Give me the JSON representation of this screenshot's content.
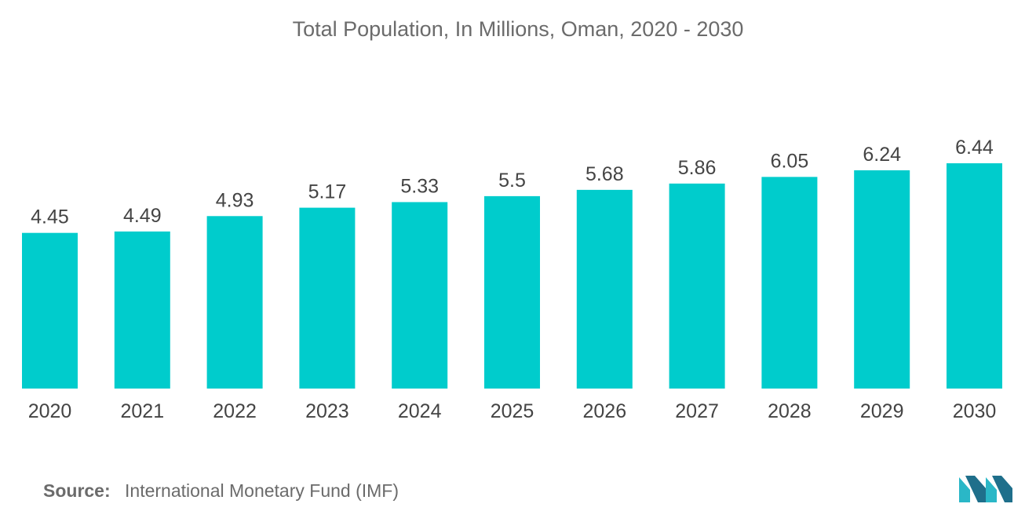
{
  "chart_data": {
    "type": "bar",
    "title": "Total Population, In Millions, Oman, 2020 - 2030",
    "categories": [
      "2020",
      "2021",
      "2022",
      "2023",
      "2024",
      "2025",
      "2026",
      "2027",
      "2028",
      "2029",
      "2030"
    ],
    "values": [
      4.45,
      4.49,
      4.93,
      5.17,
      5.33,
      5.5,
      5.68,
      5.86,
      6.05,
      6.24,
      6.44
    ],
    "value_labels": [
      "4.45",
      "4.49",
      "4.93",
      "5.17",
      "5.33",
      "5.5",
      "5.68",
      "5.86",
      "6.05",
      "6.24",
      "6.44"
    ],
    "xlabel": "",
    "ylabel": "",
    "ylim": [
      0,
      6.44
    ],
    "grid": false,
    "bar_color": "#00cccc"
  },
  "source": {
    "label": "Source:",
    "text": "International Monetary Fund (IMF)"
  },
  "logo": {
    "icon": "mordor-intelligence-logo-icon",
    "colors": [
      "#1f6f8b",
      "#2ab7c7"
    ]
  }
}
